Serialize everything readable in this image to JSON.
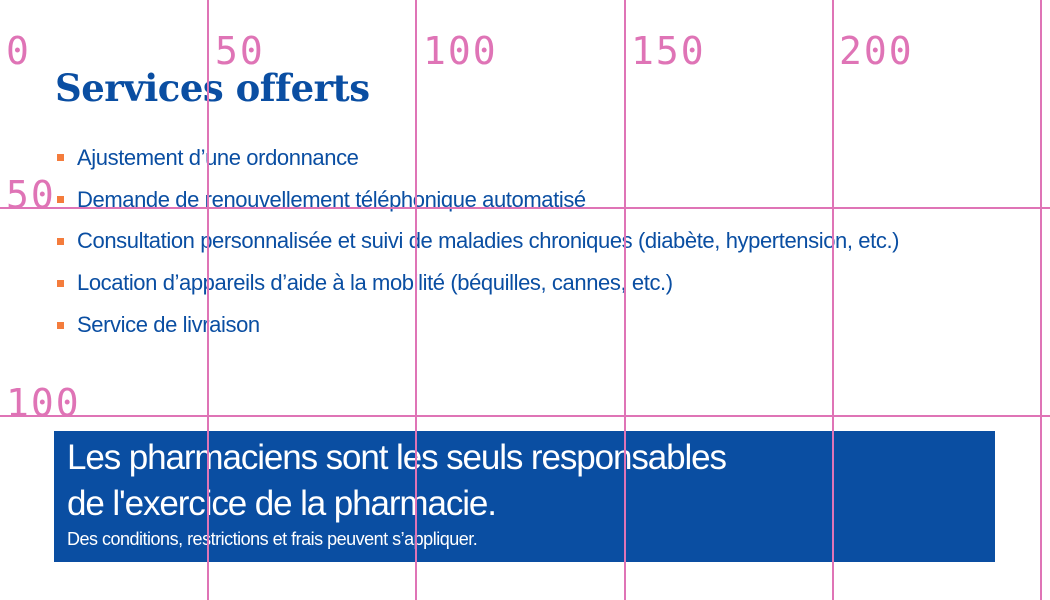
{
  "services": {
    "title": "Services offerts",
    "items": [
      "Ajustement d’une ordonnance",
      "Demande de renouvellement téléphonique automatisé",
      "Consultation personnalisée et suivi de maladies chroniques (diabète, hypertension, etc.)",
      "Location d’appareils d’aide à la mobilité (béquilles, cannes, etc.)",
      "Service de livraison"
    ],
    "bullet_color": "#f47c3c"
  },
  "notice": {
    "line1": "Les pharmaciens sont les seuls responsables",
    "line2": "de l'exercice de la pharmacie.",
    "small": "Des conditions, restrictions et frais peuvent s’appliquer.",
    "background": "#0a4ea2"
  },
  "grid_overlay": {
    "color": "#df74b6",
    "x_labels": [
      "0",
      "50",
      "100",
      "150",
      "200"
    ],
    "y_labels": [
      "50",
      "100"
    ]
  }
}
